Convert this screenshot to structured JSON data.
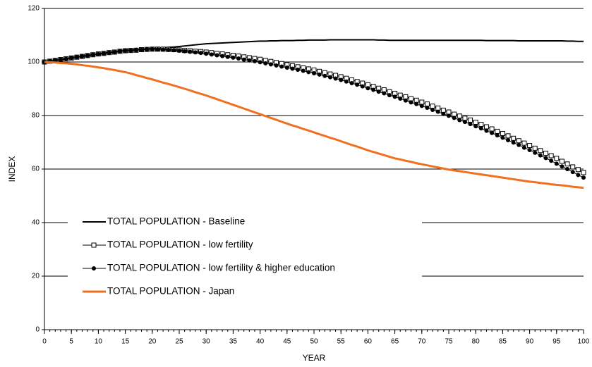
{
  "chart_data": {
    "type": "line",
    "x_label": "YEAR",
    "y_label": "INDEX",
    "x": [
      0,
      1,
      2,
      3,
      4,
      5,
      6,
      7,
      8,
      9,
      10,
      11,
      12,
      13,
      14,
      15,
      16,
      17,
      18,
      19,
      20,
      21,
      22,
      23,
      24,
      25,
      26,
      27,
      28,
      29,
      30,
      31,
      32,
      33,
      34,
      35,
      36,
      37,
      38,
      39,
      40,
      41,
      42,
      43,
      44,
      45,
      46,
      47,
      48,
      49,
      50,
      51,
      52,
      53,
      54,
      55,
      56,
      57,
      58,
      59,
      60,
      61,
      62,
      63,
      64,
      65,
      66,
      67,
      68,
      69,
      70,
      71,
      72,
      73,
      74,
      75,
      76,
      77,
      78,
      79,
      80,
      81,
      82,
      83,
      84,
      85,
      86,
      87,
      88,
      89,
      90,
      91,
      92,
      93,
      94,
      95,
      96,
      97,
      98,
      99,
      100
    ],
    "xlim": [
      0,
      100
    ],
    "xticks": [
      0,
      5,
      10,
      15,
      20,
      25,
      30,
      35,
      40,
      45,
      50,
      55,
      60,
      65,
      70,
      75,
      80,
      85,
      90,
      95,
      100
    ],
    "ylim": [
      0,
      120
    ],
    "yticks": [
      0,
      20,
      40,
      60,
      80,
      100,
      120
    ],
    "grid": true,
    "series": [
      {
        "name": "TOTAL POPULATION - Baseline",
        "color": "#000000",
        "width": 2,
        "marker": null,
        "values": [
          100,
          100.3,
          100.6,
          100.9,
          101.2,
          101.5,
          101.8,
          102.1,
          102.4,
          102.7,
          103,
          103.3,
          103.5,
          103.8,
          104,
          104.3,
          104.4,
          104.6,
          104.7,
          104.9,
          105,
          105.2,
          105.3,
          105.5,
          105.6,
          105.8,
          106,
          106.2,
          106.4,
          106.6,
          106.8,
          106.9,
          107,
          107.1,
          107.2,
          107.3,
          107.4,
          107.5,
          107.6,
          107.7,
          107.8,
          107.8,
          107.9,
          107.9,
          108,
          108,
          108,
          108.1,
          108.1,
          108.2,
          108.2,
          108.2,
          108.2,
          108.3,
          108.3,
          108.3,
          108.3,
          108.3,
          108.3,
          108.3,
          108.3,
          108.3,
          108.2,
          108.2,
          108.1,
          108.1,
          108.1,
          108.1,
          108.1,
          108.1,
          108.1,
          108.1,
          108.1,
          108.1,
          108.1,
          108.1,
          108.1,
          108.1,
          108.1,
          108.1,
          108.1,
          108.1,
          108,
          108,
          108,
          108,
          108,
          108,
          107.9,
          107.9,
          107.9,
          107.9,
          107.9,
          107.9,
          107.9,
          107.9,
          107.9,
          107.8,
          107.8,
          107.7,
          107.7
        ]
      },
      {
        "name": "TOTAL POPULATION - low fertility",
        "color": "#000000",
        "width": 1,
        "marker": "square",
        "values": [
          100,
          100.3,
          100.6,
          100.9,
          101.2,
          101.5,
          101.8,
          102.1,
          102.4,
          102.7,
          103,
          103.2,
          103.5,
          103.7,
          104,
          104.2,
          104.3,
          104.4,
          104.6,
          104.7,
          104.8,
          104.8,
          104.8,
          104.7,
          104.6,
          104.5,
          104.3,
          104.2,
          104,
          103.9,
          103.7,
          103.5,
          103.2,
          103,
          102.7,
          102.5,
          102.2,
          101.9,
          101.6,
          101.3,
          101,
          100.6,
          100.2,
          99.8,
          99.4,
          99,
          98.6,
          98.2,
          97.8,
          97.4,
          97,
          96.5,
          96,
          95.5,
          95,
          94.5,
          93.9,
          93.3,
          92.7,
          92.1,
          91.5,
          90.9,
          90.2,
          89.6,
          88.9,
          88.3,
          87.6,
          87,
          86.3,
          85.7,
          85,
          84.3,
          83.5,
          82.8,
          82,
          81.3,
          80.5,
          79.8,
          79,
          78.3,
          77.5,
          76.7,
          75.8,
          75,
          74.1,
          73.3,
          72.4,
          71.5,
          70.6,
          69.7,
          68.8,
          67.8,
          66.9,
          65.9,
          65,
          64,
          62.9,
          61.9,
          60.8,
          59.8,
          58.7
        ]
      },
      {
        "name": "TOTAL POPULATION - low fertility & higher education",
        "color": "#000000",
        "width": 1,
        "marker": "circle",
        "values": [
          100,
          100.3,
          100.6,
          100.9,
          101.2,
          101.5,
          101.8,
          102.1,
          102.4,
          102.7,
          103,
          103.2,
          103.5,
          103.7,
          104,
          104.2,
          104.3,
          104.4,
          104.6,
          104.7,
          104.8,
          104.7,
          104.6,
          104.5,
          104.4,
          104.2,
          104,
          103.8,
          103.6,
          103.4,
          103.1,
          102.8,
          102.5,
          102.2,
          101.9,
          101.6,
          101.3,
          100.9,
          100.6,
          100.3,
          99.9,
          99.5,
          99.1,
          98.7,
          98.3,
          97.9,
          97.5,
          97.1,
          96.7,
          96.2,
          95.8,
          95.3,
          94.8,
          94.3,
          93.8,
          93.3,
          92.7,
          92.1,
          91.5,
          90.9,
          90.2,
          89.6,
          88.9,
          88.3,
          87.6,
          87,
          86.3,
          85.6,
          84.9,
          84.3,
          83.6,
          82.9,
          82.1,
          81.4,
          80.6,
          79.9,
          79.1,
          78.3,
          77.6,
          76.8,
          76,
          75.2,
          74.3,
          73.5,
          72.6,
          71.7,
          70.8,
          69.9,
          69,
          68,
          67.1,
          66.1,
          65.1,
          64.1,
          63.1,
          62,
          61,
          60,
          58.9,
          57.8,
          56.8
        ]
      },
      {
        "name": "TOTAL POPULATION - Japan",
        "color": "#f07020",
        "width": 3,
        "marker": null,
        "values": [
          100,
          99.9,
          99.8,
          99.6,
          99.5,
          99.3,
          99.1,
          98.8,
          98.6,
          98.3,
          98,
          97.7,
          97.3,
          97,
          96.6,
          96.2,
          95.7,
          95.1,
          94.6,
          94,
          93.5,
          92.9,
          92.3,
          91.8,
          91.2,
          90.6,
          90,
          89.4,
          88.7,
          88.1,
          87.5,
          86.8,
          86.1,
          85.4,
          84.7,
          84,
          83.3,
          82.6,
          81.9,
          81.2,
          80.5,
          79.8,
          79.1,
          78.4,
          77.7,
          77,
          76.3,
          75.7,
          75,
          74.4,
          73.7,
          73,
          72.4,
          71.7,
          71.1,
          70.4,
          69.7,
          69,
          68.4,
          67.7,
          67,
          66.4,
          65.8,
          65.2,
          64.6,
          64,
          63.6,
          63.1,
          62.7,
          62.2,
          61.8,
          61.4,
          61,
          60.6,
          60.2,
          59.8,
          59.5,
          59.2,
          58.9,
          58.6,
          58.3,
          58,
          57.7,
          57.4,
          57.1,
          56.8,
          56.5,
          56.2,
          55.9,
          55.6,
          55.3,
          55.1,
          54.8,
          54.6,
          54.3,
          54.1,
          53.9,
          53.7,
          53.4,
          53.2,
          53
        ]
      }
    ]
  }
}
